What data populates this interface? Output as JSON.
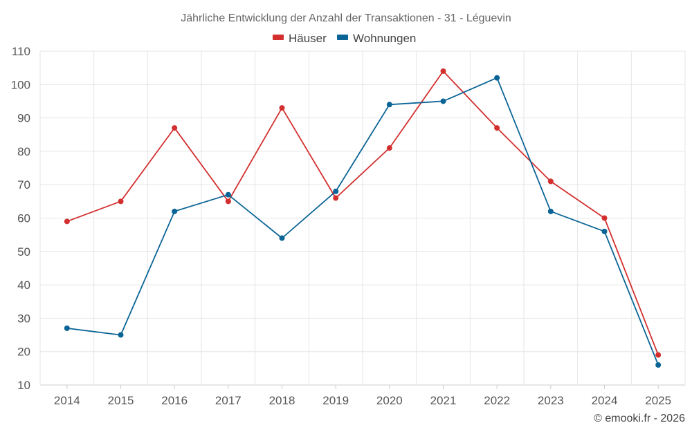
{
  "chart_data": {
    "type": "line",
    "title": "Jährliche Entwicklung der Anzahl der Transaktionen - 31 - Léguevin",
    "categories": [
      "2014",
      "2015",
      "2016",
      "2017",
      "2018",
      "2019",
      "2020",
      "2021",
      "2022",
      "2023",
      "2024",
      "2025"
    ],
    "series": [
      {
        "name": "Häuser",
        "color": "#d32f2f",
        "values": [
          59,
          65,
          87,
          65,
          93,
          66,
          81,
          104,
          87,
          71,
          60,
          19
        ]
      },
      {
        "name": "Wohnungen",
        "color": "#0a6496",
        "values": [
          27,
          25,
          62,
          67,
          54,
          68,
          94,
          95,
          102,
          62,
          56,
          16
        ]
      }
    ],
    "ylim": [
      10,
      110
    ],
    "yticks": [
      10,
      20,
      30,
      40,
      50,
      60,
      70,
      80,
      90,
      100,
      110
    ],
    "grid": true,
    "legend": "top-center",
    "xlabel": "",
    "ylabel": ""
  },
  "credit": "© emooki.fr - 2026"
}
